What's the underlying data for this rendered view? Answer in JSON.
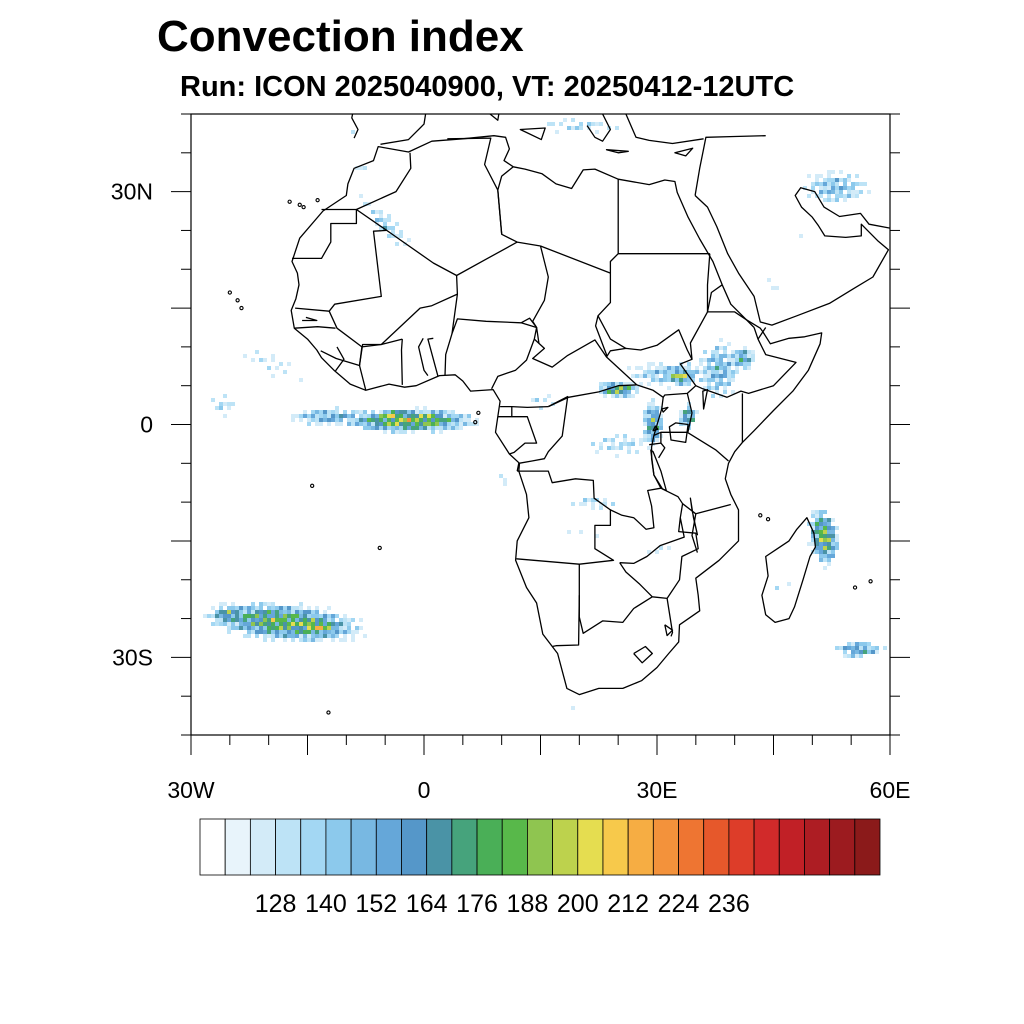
{
  "title": "Convection index",
  "subtitle": "Run: ICON 2025040900,  VT: 20250412-12UTC",
  "map": {
    "extent": {
      "lon": [
        -30,
        60
      ],
      "lat": [
        -40,
        40
      ]
    },
    "lat_ticks": [
      {
        "value": 30,
        "label": "30N"
      },
      {
        "value": 0,
        "label": "0"
      },
      {
        "value": -30,
        "label": "30S"
      }
    ],
    "lon_ticks": [
      {
        "value": -30,
        "label": "30W"
      },
      {
        "value": 0,
        "label": "0"
      },
      {
        "value": 30,
        "label": "30E"
      },
      {
        "value": 60,
        "label": "60E"
      }
    ]
  },
  "colorbar": {
    "colors": [
      "#ffffff",
      "#e8f4fb",
      "#d3ebf8",
      "#bde3f6",
      "#a3d7f3",
      "#8cc9ec",
      "#78b8e2",
      "#65a7d9",
      "#5597c9",
      "#4a93a6",
      "#46a37c",
      "#4aaf57",
      "#58b84a",
      "#8fc550",
      "#bdd24d",
      "#e5dd50",
      "#f7c94b",
      "#f6ad43",
      "#f3923b",
      "#ee7532",
      "#e6582b",
      "#dd3d29",
      "#d12a2a",
      "#c12026",
      "#ad1d23",
      "#9c1b1f",
      "#8b1a1a"
    ],
    "labels": [
      "128",
      "140",
      "152",
      "164",
      "176",
      "188",
      "200",
      "212",
      "224",
      "236"
    ]
  },
  "chart_data": {
    "type": "heatmap",
    "title": "Convection index",
    "subtitle": "Run: ICON 2025040900,  VT: 20250412-12UTC",
    "lon_range": [
      -30,
      60
    ],
    "lat_range": [
      -40,
      40
    ],
    "colorbar_levels": [
      128,
      140,
      152,
      164,
      176,
      188,
      200,
      212,
      224,
      236
    ],
    "blobs": [
      {
        "lon": -2,
        "lat": 0.5,
        "sx": 9.0,
        "sy": 1.6,
        "peak": 222,
        "rot": 0
      },
      {
        "lon": -12,
        "lat": 1.0,
        "sx": 7.0,
        "sy": 1.5,
        "peak": 178,
        "rot": 0
      },
      {
        "lon": -4,
        "lat": 1.0,
        "sx": 2.4,
        "sy": 1.0,
        "peak": 232,
        "rot": 0
      },
      {
        "lon": 1,
        "lat": 0.8,
        "sx": 2.0,
        "sy": 0.9,
        "peak": 226,
        "rot": 0
      },
      {
        "lon": -26,
        "lat": 2.5,
        "sx": 3.0,
        "sy": 2.5,
        "peak": 150,
        "rot": 0
      },
      {
        "lon": -20,
        "lat": 8.0,
        "sx": 10,
        "sy": 3.0,
        "peak": 140,
        "rot": -25
      },
      {
        "lon": -5,
        "lat": 26,
        "sx": 8.0,
        "sy": 2.3,
        "peak": 150,
        "rot": -45
      },
      {
        "lon": -5,
        "lat": 25.5,
        "sx": 3.0,
        "sy": 1.2,
        "peak": 168,
        "rot": -45
      },
      {
        "lon": -8,
        "lat": 33,
        "sx": 5.0,
        "sy": 1.5,
        "peak": 138,
        "rot": -20
      },
      {
        "lon": 32,
        "lat": 6.5,
        "sx": 8.0,
        "sy": 2.3,
        "peak": 168,
        "rot": 0
      },
      {
        "lon": 25,
        "lat": 4.5,
        "sx": 3.0,
        "sy": 1.2,
        "peak": 212,
        "rot": 0
      },
      {
        "lon": 33,
        "lat": 6.2,
        "sx": 2.2,
        "sy": 1.2,
        "peak": 220,
        "rot": 0
      },
      {
        "lon": 29.5,
        "lat": 0.0,
        "sx": 1.6,
        "sy": 3.5,
        "peak": 198,
        "rot": 0
      },
      {
        "lon": 38,
        "lat": 7.0,
        "sx": 3.5,
        "sy": 5.0,
        "peak": 174,
        "rot": 0
      },
      {
        "lon": 41,
        "lat": 8.5,
        "sx": 2.0,
        "sy": 2.0,
        "peak": 188,
        "rot": 0
      },
      {
        "lon": 34,
        "lat": 1.0,
        "sx": 1.5,
        "sy": 2.0,
        "peak": 194,
        "rot": 0
      },
      {
        "lon": 25,
        "lat": -2.5,
        "sx": 8.0,
        "sy": 2.5,
        "peak": 150,
        "rot": 0
      },
      {
        "lon": 15,
        "lat": 3.0,
        "sx": 4.0,
        "sy": 1.8,
        "peak": 146,
        "rot": 0
      },
      {
        "lon": 22,
        "lat": -10,
        "sx": 6.0,
        "sy": 1.5,
        "peak": 150,
        "rot": 0
      },
      {
        "lon": 20,
        "lat": -14,
        "sx": 6.0,
        "sy": 2.0,
        "peak": 136,
        "rot": 0
      },
      {
        "lon": 10,
        "lat": -7,
        "sx": 1.5,
        "sy": 1.5,
        "peak": 150,
        "rot": 0
      },
      {
        "lon": 30,
        "lat": -16,
        "sx": 3.5,
        "sy": 1.2,
        "peak": 140,
        "rot": 0
      },
      {
        "lon": 51.5,
        "lat": -14.5,
        "sx": 2.0,
        "sy": 4.0,
        "peak": 214,
        "rot": 10
      },
      {
        "lon": 51.5,
        "lat": -14.5,
        "sx": 1.0,
        "sy": 1.6,
        "peak": 232,
        "rot": 0
      },
      {
        "lon": 46,
        "lat": -21,
        "sx": 4.0,
        "sy": 2.5,
        "peak": 136,
        "rot": 20
      },
      {
        "lon": 56,
        "lat": -29,
        "sx": 4.0,
        "sy": 1.3,
        "peak": 186,
        "rot": 0
      },
      {
        "lon": 53,
        "lat": 30.5,
        "sx": 6.0,
        "sy": 3.0,
        "peak": 168,
        "rot": 0
      },
      {
        "lon": 48,
        "lat": 24,
        "sx": 3.5,
        "sy": 2.0,
        "peak": 130,
        "rot": 20
      },
      {
        "lon": 45,
        "lat": 18,
        "sx": 3.5,
        "sy": 2.0,
        "peak": 135,
        "rot": 20
      },
      {
        "lon": 20,
        "lat": 38.5,
        "sx": 10,
        "sy": 1.5,
        "peak": 150,
        "rot": 0
      },
      {
        "lon": -9,
        "lat": 38,
        "sx": 4.0,
        "sy": 1.3,
        "peak": 135,
        "rot": 0
      },
      {
        "lon": -18,
        "lat": -25.5,
        "sx": 11,
        "sy": 2.6,
        "peak": 212,
        "rot": -5
      },
      {
        "lon": -14,
        "lat": -26,
        "sx": 4.0,
        "sy": 1.2,
        "peak": 232,
        "rot": -5
      },
      {
        "lon": -25,
        "lat": -24.5,
        "sx": 3.0,
        "sy": 1.5,
        "peak": 202,
        "rot": 0
      },
      {
        "lon": -4,
        "lat": -28.5,
        "sx": 5.0,
        "sy": 0.5,
        "peak": 132,
        "rot": -5
      },
      {
        "lon": 20,
        "lat": -37,
        "sx": 4.5,
        "sy": 0.6,
        "peak": 140,
        "rot": -37
      }
    ]
  }
}
